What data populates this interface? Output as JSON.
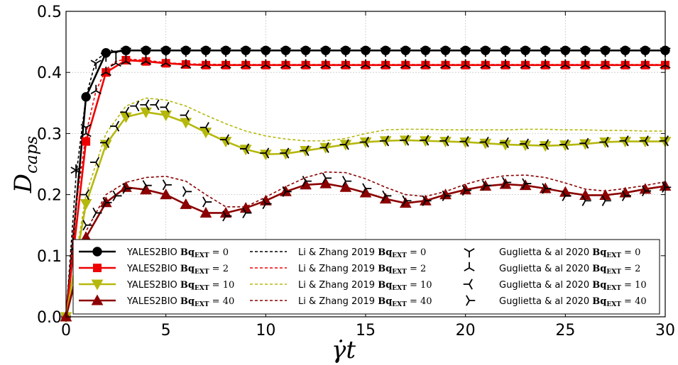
{
  "chart_data": {
    "type": "line",
    "xlabel": "γ̇t",
    "ylabel": "D_caps",
    "xlim": [
      0,
      30
    ],
    "ylim": [
      0,
      0.5
    ],
    "xticks": [
      0,
      5,
      10,
      15,
      20,
      25,
      30
    ],
    "xtick_labels": [
      "0",
      "5",
      "10",
      "15",
      "20",
      "25",
      "30"
    ],
    "yticks": [
      0,
      0.1,
      0.2,
      0.3,
      0.4,
      0.5
    ],
    "ytick_labels": [
      "0.0",
      "0.1",
      "0.2",
      "0.3",
      "0.4",
      "0.5"
    ],
    "grid": true,
    "legend_position": "bottom",
    "colors": {
      "bq0": "#000000",
      "bq2": "#ee0000",
      "bq10": "#b5b80c",
      "bq40": "#8b0000"
    },
    "yales_series": [
      {
        "name": "YALES2BIO Bq_EXT = 0",
        "legend_prefix": "YALES2BIO ",
        "bq": "0",
        "color_key": "bq0",
        "marker": "circle",
        "x": [
          0,
          1,
          2,
          3,
          4,
          5,
          6,
          7,
          8,
          9,
          10,
          11,
          12,
          13,
          14,
          15,
          16,
          17,
          18,
          19,
          20,
          21,
          22,
          23,
          24,
          25,
          26,
          27,
          28,
          29,
          30
        ],
        "y": [
          0,
          0.36,
          0.432,
          0.436,
          0.436,
          0.436,
          0.436,
          0.436,
          0.436,
          0.436,
          0.436,
          0.436,
          0.436,
          0.436,
          0.436,
          0.436,
          0.436,
          0.436,
          0.436,
          0.436,
          0.436,
          0.436,
          0.436,
          0.436,
          0.436,
          0.436,
          0.436,
          0.436,
          0.436,
          0.436,
          0.436
        ]
      },
      {
        "name": "YALES2BIO Bq_EXT = 2",
        "legend_prefix": "YALES2BIO ",
        "bq": "2",
        "color_key": "bq2",
        "marker": "square",
        "x": [
          0,
          1,
          2,
          3,
          4,
          5,
          6,
          7,
          8,
          9,
          10,
          11,
          12,
          13,
          14,
          15,
          16,
          17,
          18,
          19,
          20,
          21,
          22,
          23,
          24,
          25,
          26,
          27,
          28,
          29,
          30
        ],
        "y": [
          0,
          0.287,
          0.4,
          0.42,
          0.418,
          0.415,
          0.413,
          0.412,
          0.412,
          0.412,
          0.412,
          0.412,
          0.412,
          0.412,
          0.412,
          0.412,
          0.412,
          0.412,
          0.412,
          0.412,
          0.412,
          0.412,
          0.412,
          0.412,
          0.412,
          0.412,
          0.412,
          0.412,
          0.412,
          0.412,
          0.412
        ]
      },
      {
        "name": "YALES2BIO Bq_EXT = 10",
        "legend_prefix": "YALES2BIO ",
        "bq": "10",
        "color_key": "bq10",
        "marker": "triangle-down",
        "x": [
          0,
          1,
          2,
          3,
          4,
          5,
          6,
          7,
          8,
          9,
          10,
          11,
          12,
          13,
          14,
          15,
          16,
          17,
          18,
          19,
          20,
          21,
          22,
          23,
          24,
          25,
          26,
          27,
          28,
          29,
          30
        ],
        "y": [
          0,
          0.185,
          0.282,
          0.327,
          0.335,
          0.33,
          0.318,
          0.302,
          0.287,
          0.274,
          0.266,
          0.267,
          0.272,
          0.277,
          0.282,
          0.286,
          0.288,
          0.289,
          0.288,
          0.287,
          0.286,
          0.284,
          0.282,
          0.281,
          0.28,
          0.281,
          0.283,
          0.286,
          0.287,
          0.287,
          0.287
        ]
      },
      {
        "name": "YALES2BIO Bq_EXT = 40",
        "legend_prefix": "YALES2BIO ",
        "bq": "40",
        "color_key": "bq40",
        "marker": "triangle-up",
        "x": [
          0,
          1,
          2,
          3,
          4,
          5,
          6,
          7,
          8,
          9,
          10,
          11,
          12,
          13,
          14,
          15,
          16,
          17,
          18,
          19,
          20,
          21,
          22,
          23,
          24,
          25,
          26,
          27,
          28,
          29,
          30
        ],
        "y": [
          0,
          0.13,
          0.187,
          0.212,
          0.208,
          0.2,
          0.184,
          0.17,
          0.17,
          0.178,
          0.19,
          0.205,
          0.216,
          0.218,
          0.212,
          0.203,
          0.193,
          0.186,
          0.19,
          0.2,
          0.208,
          0.214,
          0.217,
          0.215,
          0.21,
          0.204,
          0.199,
          0.199,
          0.203,
          0.209,
          0.214
        ]
      }
    ],
    "li_series": [
      {
        "name": "Li & Zhang 2019 Bq_EXT = 0",
        "legend_prefix": "Li & Zhang 2019 ",
        "bq": "0",
        "color_key": "bq0",
        "style": "dashed",
        "x": [
          0,
          0.5,
          1,
          1.5,
          2,
          2.5,
          3,
          4,
          5,
          6,
          8,
          10,
          12,
          14,
          16,
          18,
          20,
          22,
          24,
          26,
          28,
          30
        ],
        "y": [
          0,
          0.23,
          0.36,
          0.42,
          0.432,
          0.435,
          0.436,
          0.436,
          0.436,
          0.436,
          0.436,
          0.436,
          0.436,
          0.436,
          0.436,
          0.436,
          0.436,
          0.436,
          0.436,
          0.436,
          0.436,
          0.436
        ]
      },
      {
        "name": "Li & Zhang 2019 Bq_EXT = 2",
        "legend_prefix": "Li & Zhang 2019 ",
        "bq": "2",
        "color_key": "bq2",
        "style": "dashed",
        "x": [
          0,
          0.5,
          1,
          1.5,
          2,
          2.5,
          3,
          4,
          5,
          6,
          8,
          10,
          12,
          14,
          16,
          18,
          20,
          22,
          24,
          26,
          28,
          30
        ],
        "y": [
          0,
          0.18,
          0.3,
          0.37,
          0.405,
          0.418,
          0.422,
          0.42,
          0.416,
          0.414,
          0.413,
          0.413,
          0.413,
          0.413,
          0.413,
          0.413,
          0.413,
          0.413,
          0.413,
          0.413,
          0.413,
          0.413
        ]
      },
      {
        "name": "Li & Zhang 2019 Bq_EXT = 10",
        "legend_prefix": "Li & Zhang 2019 ",
        "bq": "10",
        "color_key": "bq10",
        "style": "dashed",
        "x": [
          0,
          1,
          2,
          3,
          4,
          5,
          6,
          7,
          8,
          9,
          10,
          11,
          12,
          13,
          14,
          15,
          16,
          17,
          18,
          19,
          20,
          21,
          22,
          23,
          24,
          25,
          26,
          27,
          28,
          29,
          30
        ],
        "y": [
          0,
          0.2,
          0.3,
          0.345,
          0.358,
          0.355,
          0.345,
          0.33,
          0.316,
          0.304,
          0.296,
          0.291,
          0.288,
          0.288,
          0.292,
          0.3,
          0.306,
          0.307,
          0.307,
          0.306,
          0.306,
          0.306,
          0.306,
          0.307,
          0.307,
          0.306,
          0.306,
          0.305,
          0.305,
          0.304,
          0.304
        ]
      },
      {
        "name": "Li & Zhang 2019 Bq_EXT = 40",
        "legend_prefix": "Li & Zhang 2019 ",
        "bq": "40",
        "color_key": "bq40",
        "style": "dashed",
        "x": [
          0,
          1,
          2,
          3,
          4,
          5,
          6,
          7,
          8,
          9,
          10,
          11,
          12,
          13,
          14,
          15,
          16,
          17,
          18,
          19,
          20,
          21,
          22,
          23,
          24,
          25,
          26,
          27,
          28,
          29,
          30
        ],
        "y": [
          0,
          0.14,
          0.2,
          0.22,
          0.228,
          0.23,
          0.222,
          0.2,
          0.18,
          0.18,
          0.196,
          0.213,
          0.228,
          0.237,
          0.236,
          0.226,
          0.212,
          0.2,
          0.197,
          0.205,
          0.217,
          0.226,
          0.231,
          0.232,
          0.228,
          0.219,
          0.209,
          0.206,
          0.21,
          0.215,
          0.221
        ]
      }
    ],
    "guglietta_series": [
      {
        "name": "Guglietta & al 2020 Bq_EXT = 0",
        "legend_prefix": "Guglietta & al 2020 ",
        "bq": "0",
        "color_key": "bq0",
        "marker": "tri_down",
        "x": [
          0.5,
          1,
          1.5,
          2,
          2.5,
          3,
          4,
          5,
          6,
          7,
          8,
          9,
          10,
          11,
          12,
          13,
          14,
          15,
          16,
          17,
          18,
          19,
          20,
          21,
          22,
          23,
          24,
          25,
          26,
          27,
          28,
          29,
          30
        ],
        "y": [
          0.24,
          0.31,
          0.415,
          0.427,
          0.432,
          0.435,
          0.435,
          0.435,
          0.435,
          0.435,
          0.435,
          0.435,
          0.435,
          0.435,
          0.435,
          0.435,
          0.435,
          0.435,
          0.435,
          0.435,
          0.435,
          0.435,
          0.435,
          0.435,
          0.435,
          0.435,
          0.435,
          0.435,
          0.435,
          0.435,
          0.435,
          0.435,
          0.435
        ]
      },
      {
        "name": "Guglietta & al 2020 Bq_EXT = 2",
        "legend_prefix": "Guglietta & al 2020 ",
        "bq": "2",
        "color_key": "bq2",
        "marker": "tri_up",
        "x": [
          0.5,
          1,
          1.5,
          2,
          2.5,
          3,
          4,
          5,
          6,
          7,
          8,
          9,
          10,
          11,
          12,
          13,
          14,
          15,
          16,
          17,
          18,
          19,
          20,
          21,
          22,
          23,
          24,
          25,
          26,
          27,
          28,
          29,
          30
        ],
        "y": [
          0.24,
          0.3,
          0.37,
          0.4,
          0.415,
          0.418,
          0.418,
          0.415,
          0.412,
          0.412,
          0.412,
          0.412,
          0.412,
          0.412,
          0.412,
          0.412,
          0.412,
          0.412,
          0.412,
          0.412,
          0.412,
          0.412,
          0.412,
          0.412,
          0.412,
          0.412,
          0.412,
          0.412,
          0.412,
          0.412,
          0.412,
          0.412,
          0.412
        ]
      },
      {
        "name": "Guglietta & al 2020 Bq_EXT = 10",
        "legend_prefix": "Guglietta & al 2020 ",
        "bq": "10",
        "color_key": "bq10",
        "marker": "tri_left",
        "x": [
          0.5,
          1,
          1.5,
          2,
          2.5,
          3,
          3.5,
          4,
          4.5,
          5,
          6,
          7,
          8,
          9,
          10,
          11,
          12,
          13,
          14,
          15,
          16,
          17,
          18,
          19,
          20,
          21,
          22,
          23,
          24,
          25,
          26,
          27,
          28,
          29,
          30
        ],
        "y": [
          0.11,
          0.2,
          0.253,
          0.285,
          0.312,
          0.335,
          0.345,
          0.347,
          0.347,
          0.343,
          0.33,
          0.31,
          0.29,
          0.275,
          0.268,
          0.268,
          0.272,
          0.277,
          0.282,
          0.286,
          0.288,
          0.289,
          0.289,
          0.288,
          0.287,
          0.286,
          0.285,
          0.283,
          0.282,
          0.282,
          0.284,
          0.286,
          0.288,
          0.288,
          0.288
        ]
      },
      {
        "name": "Guglietta & al 2020 Bq_EXT = 40",
        "legend_prefix": "Guglietta & al 2020 ",
        "bq": "40",
        "color_key": "bq40",
        "marker": "tri_right",
        "x": [
          0.5,
          1,
          1.5,
          2,
          2.5,
          3,
          4,
          5,
          6,
          7,
          8,
          9,
          10,
          11,
          12,
          13,
          14,
          15,
          16,
          17,
          18,
          19,
          20,
          21,
          22,
          23,
          24,
          25,
          26,
          27,
          28,
          29,
          30
        ],
        "y": [
          0.11,
          0.15,
          0.17,
          0.187,
          0.198,
          0.21,
          0.215,
          0.216,
          0.205,
          0.188,
          0.165,
          0.17,
          0.185,
          0.205,
          0.222,
          0.227,
          0.222,
          0.21,
          0.198,
          0.19,
          0.19,
          0.198,
          0.207,
          0.215,
          0.22,
          0.218,
          0.21,
          0.198,
          0.19,
          0.19,
          0.198,
          0.206,
          0.212
        ]
      }
    ],
    "legend": [
      {
        "label": "YALES2BIO Bq_EXT = 0",
        "prefix": "YALES2BIO ",
        "bq": "0",
        "color_key": "bq0",
        "kind": "solid",
        "marker": "circle"
      },
      {
        "label": "YALES2BIO Bq_EXT = 2",
        "prefix": "YALES2BIO ",
        "bq": "2",
        "color_key": "bq2",
        "kind": "solid",
        "marker": "square"
      },
      {
        "label": "YALES2BIO Bq_EXT = 10",
        "prefix": "YALES2BIO ",
        "bq": "10",
        "color_key": "bq10",
        "kind": "solid",
        "marker": "triangle-down"
      },
      {
        "label": "YALES2BIO Bq_EXT = 40",
        "prefix": "YALES2BIO ",
        "bq": "40",
        "color_key": "bq40",
        "kind": "solid",
        "marker": "triangle-up"
      },
      {
        "label": "Li & Zhang 2019 Bq_EXT = 0",
        "prefix": "Li & Zhang 2019 ",
        "bq": "0",
        "color_key": "bq0",
        "kind": "dashed",
        "marker": "none"
      },
      {
        "label": "Li & Zhang 2019 Bq_EXT = 2",
        "prefix": "Li & Zhang 2019 ",
        "bq": "2",
        "color_key": "bq2",
        "kind": "dashed",
        "marker": "none"
      },
      {
        "label": "Li & Zhang 2019 Bq_EXT = 10",
        "prefix": "Li & Zhang 2019 ",
        "bq": "10",
        "color_key": "bq10",
        "kind": "dashed",
        "marker": "none"
      },
      {
        "label": "Li & Zhang 2019 Bq_EXT = 40",
        "prefix": "Li & Zhang 2019 ",
        "bq": "40",
        "color_key": "bq40",
        "kind": "dashed",
        "marker": "none"
      },
      {
        "label": "Guglietta & al 2020 Bq_EXT = 0",
        "prefix": "Guglietta & al 2020 ",
        "bq": "0",
        "color_key": "bq0",
        "kind": "marker",
        "marker": "tri_down"
      },
      {
        "label": "Guglietta & al 2020 Bq_EXT = 2",
        "prefix": "Guglietta & al 2020 ",
        "bq": "2",
        "color_key": "bq0",
        "kind": "marker",
        "marker": "tri_up"
      },
      {
        "label": "Guglietta & al 2020 Bq_EXT = 10",
        "prefix": "Guglietta & al 2020 ",
        "bq": "10",
        "color_key": "bq0",
        "kind": "marker",
        "marker": "tri_left"
      },
      {
        "label": "Guglietta & al 2020 Bq_EXT = 40",
        "prefix": "Guglietta & al 2020 ",
        "bq": "40",
        "color_key": "bq0",
        "kind": "marker",
        "marker": "tri_right"
      }
    ]
  }
}
